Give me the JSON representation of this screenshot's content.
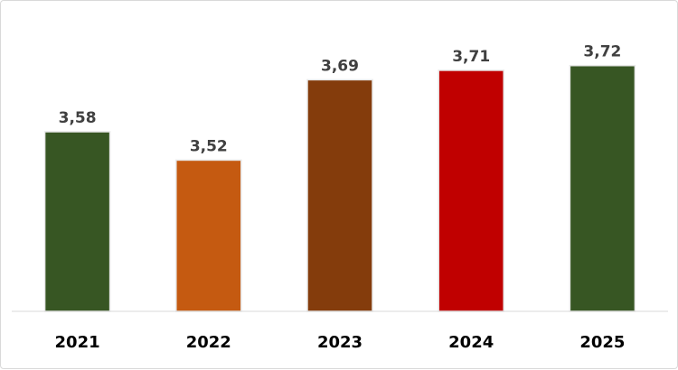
{
  "chart_data": {
    "type": "bar",
    "categories": [
      "2021",
      "2022",
      "2023",
      "2024",
      "2025"
    ],
    "values": [
      3.58,
      3.52,
      3.69,
      3.71,
      3.72
    ],
    "value_labels": [
      "3,58",
      "3,52",
      "3,69",
      "3,71",
      "3,72"
    ],
    "colors": [
      "#375623",
      "#C55A11",
      "#843C0C",
      "#C00000",
      "#375623"
    ],
    "ylim": [
      3.2,
      3.75
    ],
    "grid": false,
    "legend": "none",
    "title": "",
    "xlabel": "",
    "ylabel": ""
  }
}
